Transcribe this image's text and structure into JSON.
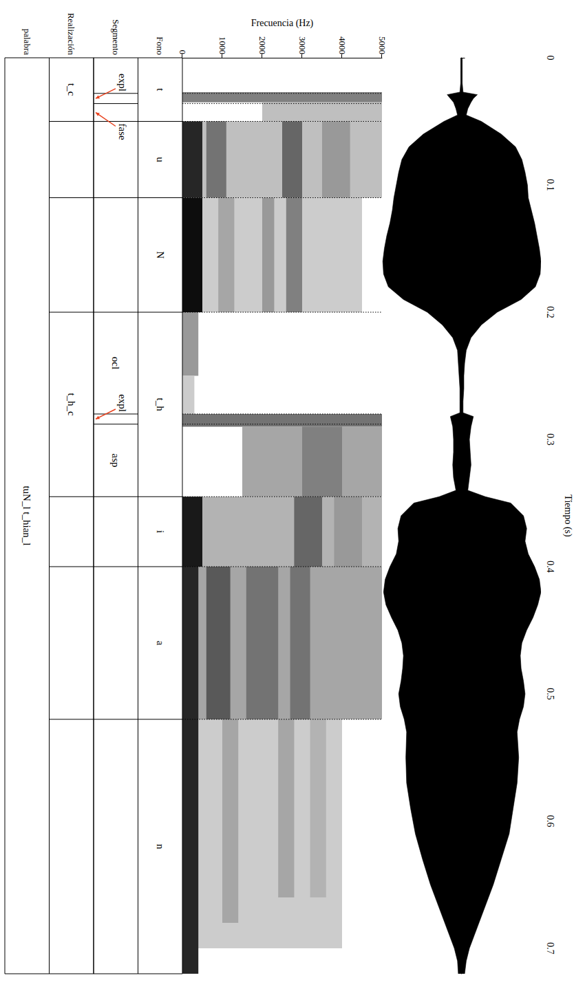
{
  "chart_data": {
    "type": "spectrogram",
    "x_label": "Tiempo (s)",
    "y_label": "Frecuencia (Hz)",
    "xlim": [
      0,
      0.72
    ],
    "xticks": [
      0,
      0.1,
      0.2,
      0.3,
      0.4,
      0.5,
      0.6,
      0.7
    ],
    "ylim": [
      0,
      5000
    ],
    "yticks": [
      0,
      1000,
      2000,
      3000,
      4000,
      5000
    ],
    "waveform": {
      "color": "#000000",
      "ylim": [
        -1,
        1
      ],
      "time": [
        0,
        0.01,
        0.02,
        0.027,
        0.029,
        0.032,
        0.035,
        0.04,
        0.045,
        0.05,
        0.06,
        0.07,
        0.08,
        0.09,
        0.1,
        0.11,
        0.12,
        0.13,
        0.14,
        0.15,
        0.16,
        0.17,
        0.18,
        0.19,
        0.2,
        0.21,
        0.22,
        0.23,
        0.24,
        0.25,
        0.26,
        0.27,
        0.279,
        0.282,
        0.29,
        0.3,
        0.31,
        0.32,
        0.33,
        0.34,
        0.345,
        0.35,
        0.36,
        0.37,
        0.38,
        0.39,
        0.4,
        0.41,
        0.42,
        0.43,
        0.44,
        0.45,
        0.46,
        0.47,
        0.48,
        0.49,
        0.5,
        0.51,
        0.52,
        0.53,
        0.55,
        0.57,
        0.59,
        0.61,
        0.63,
        0.65,
        0.67,
        0.69,
        0.7,
        0.71,
        0.72
      ],
      "upper": [
        0.01,
        0.01,
        0.01,
        0.02,
        0.2,
        0.15,
        0.12,
        0.08,
        0.06,
        0.25,
        0.5,
        0.68,
        0.76,
        0.8,
        0.83,
        0.84,
        0.88,
        0.92,
        0.95,
        0.98,
        1.0,
        0.99,
        0.93,
        0.75,
        0.45,
        0.25,
        0.12,
        0.06,
        0.04,
        0.03,
        0.03,
        0.02,
        0.02,
        0.15,
        0.12,
        0.1,
        0.11,
        0.12,
        0.1,
        0.08,
        0.3,
        0.62,
        0.78,
        0.82,
        0.8,
        0.84,
        0.92,
        0.98,
        1.0,
        0.96,
        0.9,
        0.82,
        0.76,
        0.74,
        0.75,
        0.78,
        0.8,
        0.78,
        0.73,
        0.7,
        0.72,
        0.7,
        0.65,
        0.6,
        0.5,
        0.4,
        0.28,
        0.16,
        0.1,
        0.06,
        0.04
      ],
      "lower": [
        -0.01,
        -0.01,
        -0.01,
        -0.02,
        -0.18,
        -0.14,
        -0.1,
        -0.07,
        -0.05,
        -0.22,
        -0.48,
        -0.66,
        -0.75,
        -0.79,
        -0.82,
        -0.85,
        -0.87,
        -0.9,
        -0.94,
        -0.97,
        -0.99,
        -0.98,
        -0.92,
        -0.73,
        -0.43,
        -0.24,
        -0.11,
        -0.05,
        -0.04,
        -0.03,
        -0.02,
        -0.02,
        -0.02,
        -0.14,
        -0.11,
        -0.1,
        -0.1,
        -0.11,
        -0.1,
        -0.07,
        -0.28,
        -0.6,
        -0.76,
        -0.8,
        -0.79,
        -0.82,
        -0.9,
        -0.96,
        -0.98,
        -0.95,
        -0.88,
        -0.8,
        -0.75,
        -0.73,
        -0.74,
        -0.76,
        -0.79,
        -0.77,
        -0.72,
        -0.69,
        -0.7,
        -0.69,
        -0.64,
        -0.58,
        -0.49,
        -0.39,
        -0.27,
        -0.15,
        -0.09,
        -0.05,
        -0.04
      ]
    },
    "spectrogram_bands": [
      {
        "start": 0.027,
        "end": 0.035,
        "low": 0,
        "high": 5000,
        "intensity": 0.5
      },
      {
        "start": 0.035,
        "end": 0.05,
        "low": 2000,
        "high": 5000,
        "intensity": 0.25
      },
      {
        "start": 0.05,
        "end": 0.11,
        "low": 0,
        "high": 5000,
        "intensity": 0.25
      },
      {
        "start": 0.05,
        "end": 0.11,
        "low": 0,
        "high": 500,
        "intensity": 0.85
      },
      {
        "start": 0.05,
        "end": 0.11,
        "low": 600,
        "high": 1100,
        "intensity": 0.55
      },
      {
        "start": 0.05,
        "end": 0.11,
        "low": 2500,
        "high": 3000,
        "intensity": 0.6
      },
      {
        "start": 0.05,
        "end": 0.11,
        "low": 3500,
        "high": 4200,
        "intensity": 0.4
      },
      {
        "start": 0.11,
        "end": 0.2,
        "low": 0,
        "high": 4500,
        "intensity": 0.2
      },
      {
        "start": 0.11,
        "end": 0.2,
        "low": 0,
        "high": 500,
        "intensity": 0.95
      },
      {
        "start": 0.11,
        "end": 0.2,
        "low": 900,
        "high": 1300,
        "intensity": 0.35
      },
      {
        "start": 0.11,
        "end": 0.2,
        "low": 2000,
        "high": 2300,
        "intensity": 0.4
      },
      {
        "start": 0.11,
        "end": 0.2,
        "low": 2600,
        "high": 3000,
        "intensity": 0.5
      },
      {
        "start": 0.2,
        "end": 0.25,
        "low": 0,
        "high": 400,
        "intensity": 0.4
      },
      {
        "start": 0.25,
        "end": 0.28,
        "low": 0,
        "high": 300,
        "intensity": 0.2
      },
      {
        "start": 0.28,
        "end": 0.29,
        "low": 0,
        "high": 5000,
        "intensity": 0.55
      },
      {
        "start": 0.29,
        "end": 0.345,
        "low": 1500,
        "high": 5000,
        "intensity": 0.35
      },
      {
        "start": 0.29,
        "end": 0.345,
        "low": 3000,
        "high": 4000,
        "intensity": 0.5
      },
      {
        "start": 0.345,
        "end": 0.4,
        "low": 0,
        "high": 5000,
        "intensity": 0.3
      },
      {
        "start": 0.345,
        "end": 0.4,
        "low": 0,
        "high": 500,
        "intensity": 0.9
      },
      {
        "start": 0.345,
        "end": 0.4,
        "low": 2800,
        "high": 3500,
        "intensity": 0.6
      },
      {
        "start": 0.345,
        "end": 0.4,
        "low": 3800,
        "high": 4500,
        "intensity": 0.4
      },
      {
        "start": 0.4,
        "end": 0.52,
        "low": 0,
        "high": 5000,
        "intensity": 0.35
      },
      {
        "start": 0.4,
        "end": 0.52,
        "low": 0,
        "high": 400,
        "intensity": 0.85
      },
      {
        "start": 0.4,
        "end": 0.52,
        "low": 600,
        "high": 1200,
        "intensity": 0.65
      },
      {
        "start": 0.4,
        "end": 0.52,
        "low": 1600,
        "high": 2400,
        "intensity": 0.55
      },
      {
        "start": 0.4,
        "end": 0.52,
        "low": 2700,
        "high": 3200,
        "intensity": 0.55
      },
      {
        "start": 0.52,
        "end": 0.7,
        "low": 0,
        "high": 4000,
        "intensity": 0.2
      },
      {
        "start": 0.52,
        "end": 0.72,
        "low": 0,
        "high": 400,
        "intensity": 0.85
      },
      {
        "start": 0.52,
        "end": 0.68,
        "low": 1000,
        "high": 1400,
        "intensity": 0.35
      },
      {
        "start": 0.52,
        "end": 0.66,
        "low": 2400,
        "high": 2800,
        "intensity": 0.35
      },
      {
        "start": 0.52,
        "end": 0.66,
        "low": 3200,
        "high": 3600,
        "intensity": 0.3
      }
    ],
    "tiers": [
      {
        "name": "Fono",
        "boundaries": [
          0.05,
          0.11,
          0.2,
          0.345,
          0.4,
          0.52
        ],
        "intervals": [
          {
            "label": "t",
            "start": 0,
            "end": 0.05
          },
          {
            "label": "u",
            "start": 0.05,
            "end": 0.11
          },
          {
            "label": "N",
            "start": 0.11,
            "end": 0.2
          },
          {
            "label": "t_h",
            "start": 0.2,
            "end": 0.345
          },
          {
            "label": "i",
            "start": 0.345,
            "end": 0.4
          },
          {
            "label": "a",
            "start": 0.4,
            "end": 0.52
          },
          {
            "label": "n",
            "start": 0.52,
            "end": 0.72
          }
        ]
      },
      {
        "name": "Segmento",
        "boundaries": [
          0.028,
          0.036,
          0.05,
          0.11,
          0.2,
          0.28,
          0.288,
          0.345,
          0.4,
          0.52
        ],
        "intervals": [
          {
            "label": "expl",
            "start": 0.028,
            "end": 0.036
          },
          {
            "label": "fase",
            "start": 0.036,
            "end": 0.05
          },
          {
            "label": "ocl",
            "start": 0.2,
            "end": 0.28
          },
          {
            "label": "expl",
            "start": 0.28,
            "end": 0.288
          },
          {
            "label": "asp",
            "start": 0.288,
            "end": 0.345
          }
        ]
      },
      {
        "name": "Realización",
        "boundaries": [
          0.05,
          0.11,
          0.2,
          0.345,
          0.4,
          0.52
        ],
        "intervals": [
          {
            "label": "t_c",
            "start": 0,
            "end": 0.05
          },
          {
            "label": "t_h_c",
            "start": 0.2,
            "end": 0.345
          }
        ]
      },
      {
        "name": "palabra",
        "boundaries": [],
        "intervals": [
          {
            "label": "tuN_l t_hian_l",
            "start": 0,
            "end": 0.72
          }
        ]
      }
    ]
  }
}
